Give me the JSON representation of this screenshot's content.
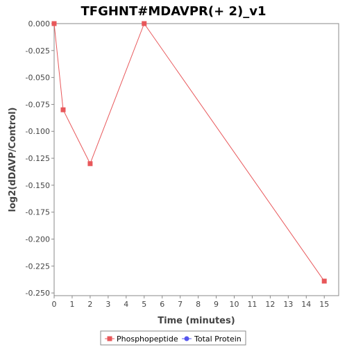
{
  "chart_data": {
    "type": "line",
    "title": "TFGHNT#MDAVPR(+ 2)_v1",
    "xlabel": "Time (minutes)",
    "ylabel": "log2(dDAVP/Control)",
    "xlim": [
      0,
      15.8
    ],
    "ylim": [
      -0.2525,
      0.0
    ],
    "x_ticks": [
      0,
      1,
      2,
      3,
      4,
      5,
      6,
      7,
      8,
      9,
      10,
      11,
      12,
      13,
      14,
      15
    ],
    "y_ticks": [
      0.0,
      -0.025,
      -0.05,
      -0.075,
      -0.1,
      -0.125,
      -0.15,
      -0.175,
      -0.2,
      -0.225,
      -0.25
    ],
    "y_tick_labels": [
      "0.000",
      "-0.025",
      "-0.050",
      "-0.075",
      "-0.100",
      "-0.125",
      "-0.150",
      "-0.175",
      "-0.200",
      "-0.225",
      "-0.250"
    ],
    "grid": false,
    "legend_position": "bottom-center",
    "series": [
      {
        "name": "Phosphopeptide",
        "color": "#e8575a",
        "marker": "square",
        "x": [
          0,
          0.5,
          2,
          5,
          15
        ],
        "y": [
          0.0,
          -0.08,
          -0.13,
          0.0,
          -0.239
        ]
      },
      {
        "name": "Total Protein",
        "color": "#5555ee",
        "marker": "circle",
        "x": [],
        "y": []
      }
    ]
  }
}
